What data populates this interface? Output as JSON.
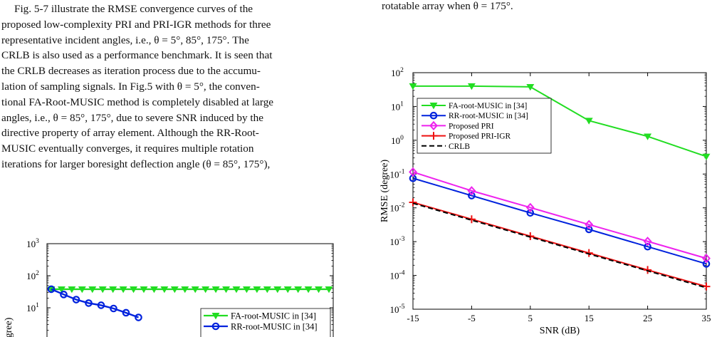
{
  "left_column": {
    "paragraph_lines": [
      "Fig. 5-7 illustrate the RMSE convergence curves of the",
      "proposed low-complexity PRI and PRI-IGR methods for three",
      "representative incident angles, i.e., θ = 5°, 85°, 175°. The",
      "CRLB is also used as a performance benchmark. It is seen that",
      "the CRLB decreases as iteration process due to the accumu-",
      "lation of sampling signals. In Fig.5 with θ = 5°, the conven-",
      "tional FA-Root-MUSIC method is completely disabled at large",
      "angles, i.e., θ = 85°, 175°, due to severe SNR induced by the",
      "directive property of array element. Although the RR-Root-",
      "MUSIC eventually converges, it requires multiple rotation",
      "iterations for larger boresight deflection angle (θ = 85°, 175°),"
    ]
  },
  "right_column": {
    "caption_tail": "rotatable array when θ = 175°."
  },
  "chart_data": [
    {
      "type": "line",
      "x": [
        -15,
        -5,
        5,
        15,
        25,
        35
      ],
      "xticks": [
        "-15",
        "-5",
        "5",
        "15",
        "25",
        "35"
      ],
      "xlabel": "SNR (dB)",
      "ylabel": "RMSE (degree)",
      "yscale": "log",
      "ylim": [
        1e-05,
        100
      ],
      "yticks": [
        "10^-5",
        "10^-4",
        "10^-3",
        "10^-2",
        "10^-1",
        "10^0",
        "10^1",
        "10^2"
      ],
      "grid": false,
      "legend": "upper-left",
      "series": [
        {
          "name": "FA-root-MUSIC in [34]",
          "color": "#22dd22",
          "marker": "triangle-down",
          "values": [
            40,
            40,
            38,
            3.8,
            1.3,
            0.33
          ]
        },
        {
          "name": "RR-root-MUSIC in [34]",
          "color": "#0022dd",
          "marker": "circle",
          "values": [
            0.075,
            0.023,
            0.0071,
            0.0023,
            0.00071,
            0.00022
          ]
        },
        {
          "name": "Proposed PRI",
          "color": "#ee22ee",
          "marker": "diamond",
          "values": [
            0.115,
            0.032,
            0.0102,
            0.0032,
            0.00102,
            0.00032
          ]
        },
        {
          "name": "Proposed PRI-IGR",
          "color": "#ee1111",
          "marker": "plus",
          "values": [
            0.0145,
            0.0046,
            0.00145,
            0.00046,
            0.000145,
            4.7e-05
          ]
        },
        {
          "name": "CRLB",
          "color": "#000000",
          "marker": "none",
          "dashed": true,
          "values": [
            0.0137,
            0.00432,
            0.00137,
            0.000432,
            0.000137,
            4.32e-05
          ]
        }
      ]
    },
    {
      "type": "line",
      "partial": true,
      "xlabel": "",
      "ylabel": "gree)",
      "yscale": "log",
      "yticks": [
        "10^1",
        "10^2",
        "10^3"
      ],
      "legend": "right",
      "series": [
        {
          "name": "FA-root-MUSIC in [34]",
          "color": "#22dd22",
          "marker": "triangle-down",
          "values": [
            38,
            38,
            38,
            38,
            38,
            38,
            38,
            38,
            38,
            38,
            38,
            38,
            38,
            38,
            38,
            38,
            38,
            38,
            38,
            38,
            38,
            38,
            38,
            38,
            38,
            38,
            38,
            38
          ]
        },
        {
          "name": "RR-root-MUSIC in [34]",
          "color": "#0022dd",
          "marker": "circle",
          "values": [
            38,
            26,
            18,
            14,
            12,
            9.5,
            7,
            5
          ]
        }
      ]
    }
  ]
}
